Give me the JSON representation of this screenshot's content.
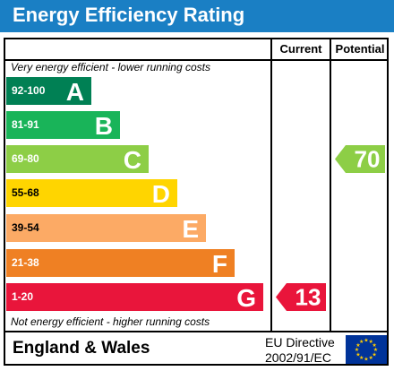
{
  "title": "Energy Efficiency Rating",
  "columns": {
    "current": "Current",
    "potential": "Potential"
  },
  "notes": {
    "top": "Very energy efficient - lower running costs",
    "bottom": "Not energy efficient - higher running costs"
  },
  "bands": [
    {
      "range": "92-100",
      "letter": "A",
      "color": "#008054"
    },
    {
      "range": "81-91",
      "letter": "B",
      "color": "#19b459"
    },
    {
      "range": "69-80",
      "letter": "C",
      "color": "#8dce46"
    },
    {
      "range": "55-68",
      "letter": "D",
      "color": "#ffd500"
    },
    {
      "range": "39-54",
      "letter": "E",
      "color": "#fcaa65"
    },
    {
      "range": "21-38",
      "letter": "F",
      "color": "#ef8023"
    },
    {
      "range": "1-20",
      "letter": "G",
      "color": "#e9153b"
    }
  ],
  "current_rating": {
    "value": "13",
    "band": "G",
    "color": "#e9153b"
  },
  "potential_rating": {
    "value": "70",
    "band": "C",
    "color": "#8dce46"
  },
  "footer": {
    "region": "England & Wales",
    "directive_line1": "EU Directive",
    "directive_line2": "2002/91/EC"
  },
  "colors": {
    "title_bar": "#1a7fc4",
    "eu_flag": "#003399",
    "eu_stars": "#ffcc00"
  }
}
